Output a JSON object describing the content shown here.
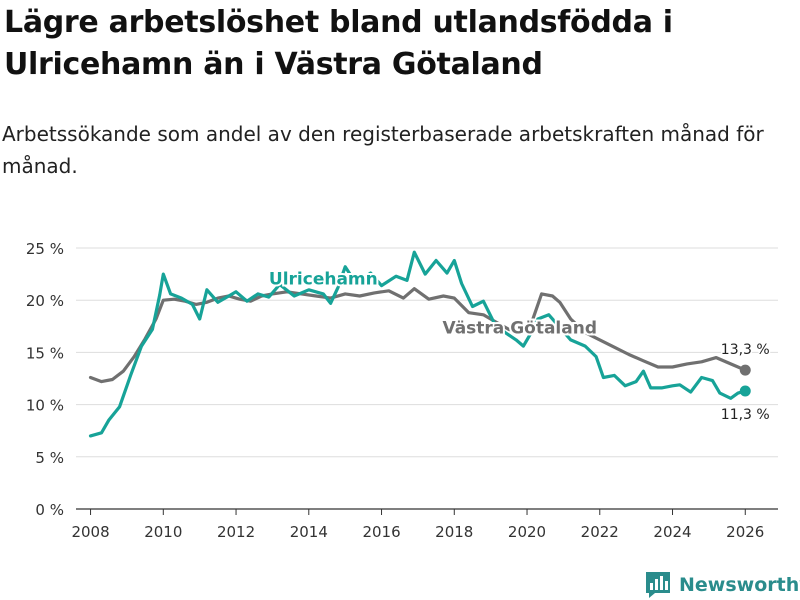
{
  "title": "Lägre arbetslöshet bland utlandsfödda i Ulricehamn än i Västra Götaland",
  "subtitle": "Arbetssökande som andel av den registerbaserade arbetskraften månad för månad.",
  "brand": {
    "name": "Newsworthy",
    "color": "#2a8c8c",
    "icon": "bar-chart-logo-icon"
  },
  "colors": {
    "ulricehamn": "#17a398",
    "vastra": "#707070",
    "grid": "#dddddd",
    "axis": "#333333"
  },
  "chart_data": {
    "type": "line",
    "title": "Lägre arbetslöshet bland utlandsfödda i Ulricehamn än i Västra Götaland",
    "xlabel": "",
    "ylabel": "",
    "xlim": [
      2007.6,
      2026.9
    ],
    "ylim": [
      0,
      25
    ],
    "grid": true,
    "x_ticks": [
      2008,
      2010,
      2012,
      2014,
      2016,
      2018,
      2020,
      2022,
      2024,
      2026
    ],
    "y_ticks": [
      0,
      5,
      10,
      15,
      20,
      25
    ],
    "y_tick_labels": [
      "0 %",
      "5 %",
      "10 %",
      "15 %",
      "20 %",
      "25 %"
    ],
    "series": [
      {
        "name": "Västra Götaland",
        "color": "#707070",
        "label": "Västra Götaland",
        "end_label": "13,3 %",
        "points": [
          [
            2008.0,
            12.6
          ],
          [
            2008.3,
            12.2
          ],
          [
            2008.6,
            12.4
          ],
          [
            2008.9,
            13.2
          ],
          [
            2009.2,
            14.6
          ],
          [
            2009.5,
            16.3
          ],
          [
            2009.8,
            18.2
          ],
          [
            2010.0,
            20.0
          ],
          [
            2010.3,
            20.1
          ],
          [
            2010.6,
            19.9
          ],
          [
            2010.9,
            19.6
          ],
          [
            2011.2,
            19.8
          ],
          [
            2011.5,
            20.2
          ],
          [
            2011.8,
            20.4
          ],
          [
            2012.1,
            20.1
          ],
          [
            2012.4,
            19.9
          ],
          [
            2012.7,
            20.4
          ],
          [
            2013.0,
            20.6
          ],
          [
            2013.4,
            20.8
          ],
          [
            2013.8,
            20.6
          ],
          [
            2014.2,
            20.4
          ],
          [
            2014.6,
            20.2
          ],
          [
            2015.0,
            20.6
          ],
          [
            2015.4,
            20.4
          ],
          [
            2015.8,
            20.7
          ],
          [
            2016.2,
            20.9
          ],
          [
            2016.6,
            20.2
          ],
          [
            2016.9,
            21.1
          ],
          [
            2017.3,
            20.1
          ],
          [
            2017.7,
            20.4
          ],
          [
            2018.0,
            20.2
          ],
          [
            2018.4,
            18.8
          ],
          [
            2018.8,
            18.6
          ],
          [
            2019.1,
            18.0
          ],
          [
            2019.5,
            17.2
          ],
          [
            2019.8,
            17.0
          ],
          [
            2020.1,
            17.6
          ],
          [
            2020.4,
            20.6
          ],
          [
            2020.7,
            20.4
          ],
          [
            2020.9,
            19.8
          ],
          [
            2021.2,
            18.2
          ],
          [
            2021.6,
            16.9
          ],
          [
            2022.0,
            16.2
          ],
          [
            2022.4,
            15.5
          ],
          [
            2022.8,
            14.8
          ],
          [
            2023.2,
            14.2
          ],
          [
            2023.6,
            13.6
          ],
          [
            2024.0,
            13.6
          ],
          [
            2024.4,
            13.9
          ],
          [
            2024.8,
            14.1
          ],
          [
            2025.2,
            14.5
          ],
          [
            2025.6,
            13.9
          ],
          [
            2026.0,
            13.3
          ]
        ]
      },
      {
        "name": "Ulricehamn",
        "color": "#17a398",
        "label": "Ulricehamn",
        "end_label": "11,3 %",
        "points": [
          [
            2008.0,
            7.0
          ],
          [
            2008.3,
            7.3
          ],
          [
            2008.5,
            8.5
          ],
          [
            2008.8,
            9.8
          ],
          [
            2009.1,
            12.8
          ],
          [
            2009.4,
            15.6
          ],
          [
            2009.7,
            17.2
          ],
          [
            2009.9,
            20.5
          ],
          [
            2010.0,
            22.5
          ],
          [
            2010.2,
            20.6
          ],
          [
            2010.5,
            20.2
          ],
          [
            2010.8,
            19.6
          ],
          [
            2011.0,
            18.2
          ],
          [
            2011.2,
            21.0
          ],
          [
            2011.5,
            19.8
          ],
          [
            2011.8,
            20.4
          ],
          [
            2012.0,
            20.8
          ],
          [
            2012.3,
            19.9
          ],
          [
            2012.6,
            20.6
          ],
          [
            2012.9,
            20.3
          ],
          [
            2013.2,
            21.5
          ],
          [
            2013.6,
            20.4
          ],
          [
            2014.0,
            21.0
          ],
          [
            2014.4,
            20.6
          ],
          [
            2014.6,
            19.7
          ],
          [
            2014.8,
            21.2
          ],
          [
            2015.0,
            23.2
          ],
          [
            2015.3,
            21.6
          ],
          [
            2015.7,
            22.6
          ],
          [
            2016.0,
            21.4
          ],
          [
            2016.4,
            22.3
          ],
          [
            2016.7,
            21.9
          ],
          [
            2016.9,
            24.6
          ],
          [
            2017.2,
            22.5
          ],
          [
            2017.5,
            23.8
          ],
          [
            2017.8,
            22.6
          ],
          [
            2018.0,
            23.8
          ],
          [
            2018.2,
            21.6
          ],
          [
            2018.5,
            19.4
          ],
          [
            2018.8,
            19.9
          ],
          [
            2019.1,
            17.8
          ],
          [
            2019.4,
            16.9
          ],
          [
            2019.7,
            16.2
          ],
          [
            2019.9,
            15.6
          ],
          [
            2020.1,
            16.8
          ],
          [
            2020.3,
            18.2
          ],
          [
            2020.6,
            18.6
          ],
          [
            2020.9,
            17.4
          ],
          [
            2021.2,
            16.2
          ],
          [
            2021.6,
            15.6
          ],
          [
            2021.9,
            14.6
          ],
          [
            2022.1,
            12.6
          ],
          [
            2022.4,
            12.8
          ],
          [
            2022.7,
            11.8
          ],
          [
            2023.0,
            12.2
          ],
          [
            2023.2,
            13.2
          ],
          [
            2023.4,
            11.6
          ],
          [
            2023.7,
            11.6
          ],
          [
            2024.0,
            11.8
          ],
          [
            2024.2,
            11.9
          ],
          [
            2024.5,
            11.2
          ],
          [
            2024.8,
            12.6
          ],
          [
            2025.1,
            12.3
          ],
          [
            2025.3,
            11.1
          ],
          [
            2025.6,
            10.6
          ],
          [
            2025.8,
            11.1
          ],
          [
            2026.0,
            11.3
          ]
        ]
      }
    ]
  }
}
